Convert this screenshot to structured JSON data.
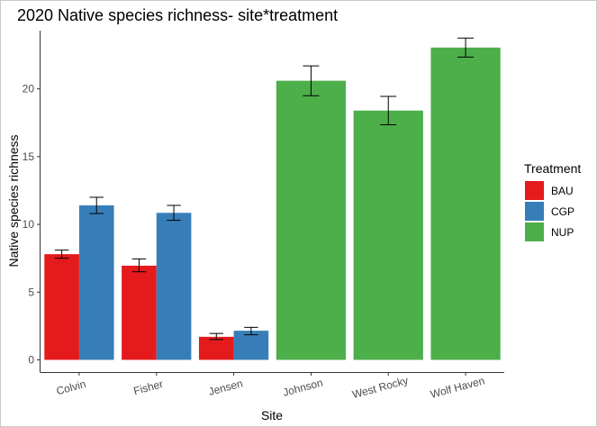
{
  "chart_data": {
    "type": "bar",
    "title": "2020 Native species richness- site*treatment",
    "xlabel": "Site",
    "ylabel": "Native species richness",
    "categories": [
      "Colvin",
      "Fisher",
      "Jensen",
      "Johnson",
      "West Rocky",
      "Wolf Haven"
    ],
    "ylim": [
      -0.9,
      24.3
    ],
    "yticks": [
      "0",
      "5",
      "10",
      "15",
      "20"
    ],
    "yticks_values": [
      0,
      5,
      10,
      15,
      20
    ],
    "legend": {
      "title": "Treatment",
      "position": "right"
    },
    "grid": false,
    "bars": [
      {
        "category": "Colvin",
        "series": "BAU",
        "value": 7.8,
        "err_low": 7.5,
        "err_high": 8.1
      },
      {
        "category": "Colvin",
        "series": "CGP",
        "value": 11.4,
        "err_low": 10.8,
        "err_high": 12.0
      },
      {
        "category": "Fisher",
        "series": "BAU",
        "value": 6.95,
        "err_low": 6.5,
        "err_high": 7.45
      },
      {
        "category": "Fisher",
        "series": "CGP",
        "value": 10.85,
        "err_low": 10.3,
        "err_high": 11.4
      },
      {
        "category": "Jensen",
        "series": "BAU",
        "value": 1.7,
        "err_low": 1.5,
        "err_high": 1.95
      },
      {
        "category": "Jensen",
        "series": "CGP",
        "value": 2.15,
        "err_low": 1.85,
        "err_high": 2.4
      },
      {
        "category": "Johnson",
        "series": "NUP",
        "value": 20.6,
        "err_low": 19.5,
        "err_high": 21.7
      },
      {
        "category": "West Rocky",
        "series": "NUP",
        "value": 18.4,
        "err_low": 17.35,
        "err_high": 19.45
      },
      {
        "category": "Wolf Haven",
        "series": "NUP",
        "value": 23.05,
        "err_low": 22.35,
        "err_high": 23.75
      }
    ],
    "series": [
      {
        "name": "BAU",
        "color": "#e41a1c"
      },
      {
        "name": "CGP",
        "color": "#377eb8"
      },
      {
        "name": "NUP",
        "color": "#4daf4a"
      }
    ]
  }
}
